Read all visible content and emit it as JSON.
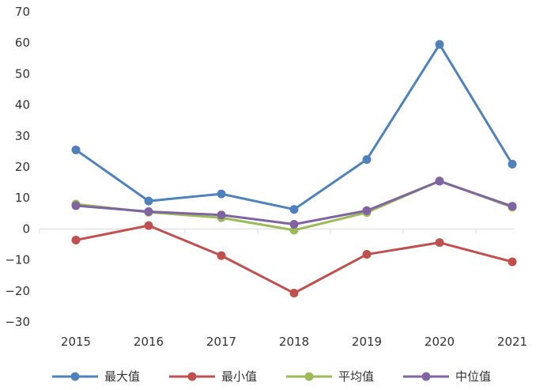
{
  "chart_data": {
    "type": "line",
    "title": "",
    "xlabel": "",
    "ylabel": "",
    "categories": [
      "2015",
      "2016",
      "2017",
      "2018",
      "2019",
      "2020",
      "2021"
    ],
    "ylim": [
      -30,
      70
    ],
    "yticks": [
      70,
      60,
      50,
      40,
      30,
      20,
      10,
      0,
      -10,
      -20,
      -30
    ],
    "ytick_labels": [
      "70",
      "60",
      "50",
      "40",
      "30",
      "20",
      "10",
      "0",
      "−10",
      "−20",
      "−30"
    ],
    "grid": false,
    "legend_position": "bottom",
    "series": [
      {
        "name": "最大值",
        "color": "#4F81BD",
        "values": [
          25.5,
          9.0,
          11.3,
          6.3,
          22.4,
          59.5,
          20.9
        ]
      },
      {
        "name": "最小值",
        "color": "#C0504D",
        "values": [
          -3.6,
          1.1,
          -8.6,
          -20.7,
          -8.2,
          -4.4,
          -10.6
        ]
      },
      {
        "name": "平均值",
        "color": "#9BBB59",
        "values": [
          8.0,
          5.4,
          3.6,
          -0.4,
          5.3,
          15.5,
          7.0
        ]
      },
      {
        "name": "中位值",
        "color": "#8064A2",
        "values": [
          7.5,
          5.6,
          4.5,
          1.5,
          5.9,
          15.4,
          7.3
        ]
      }
    ]
  }
}
